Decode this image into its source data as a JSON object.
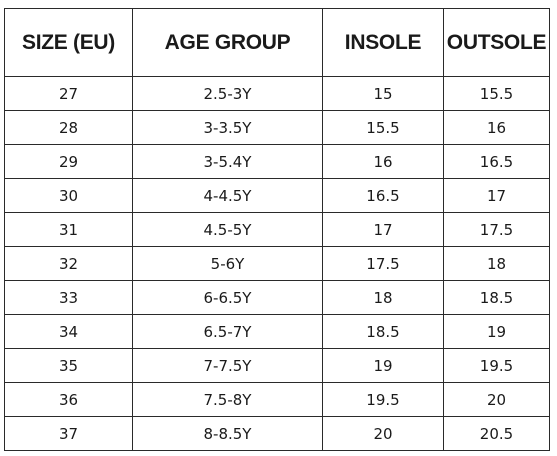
{
  "table": {
    "headers": [
      "SIZE (EU)",
      "AGE GROUP",
      "INSOLE",
      "OUTSOLE"
    ],
    "rows": [
      [
        "27",
        "2.5-3Y",
        "15",
        "15.5"
      ],
      [
        "28",
        "3-3.5Y",
        "15.5",
        "16"
      ],
      [
        "29",
        "3-5.4Y",
        "16",
        "16.5"
      ],
      [
        "30",
        "4-4.5Y",
        "16.5",
        "17"
      ],
      [
        "31",
        "4.5-5Y",
        "17",
        "17.5"
      ],
      [
        "32",
        "5-6Y",
        "17.5",
        "18"
      ],
      [
        "33",
        "6-6.5Y",
        "18",
        "18.5"
      ],
      [
        "34",
        "6.5-7Y",
        "18.5",
        "19"
      ],
      [
        "35",
        "7-7.5Y",
        "19",
        "19.5"
      ],
      [
        "36",
        "7.5-8Y",
        "19.5",
        "20"
      ],
      [
        "37",
        "8-8.5Y",
        "20",
        "20.5"
      ]
    ]
  },
  "colors": {
    "border": "#2a2a2a",
    "text": "#1a1a1a",
    "background": "#ffffff"
  }
}
